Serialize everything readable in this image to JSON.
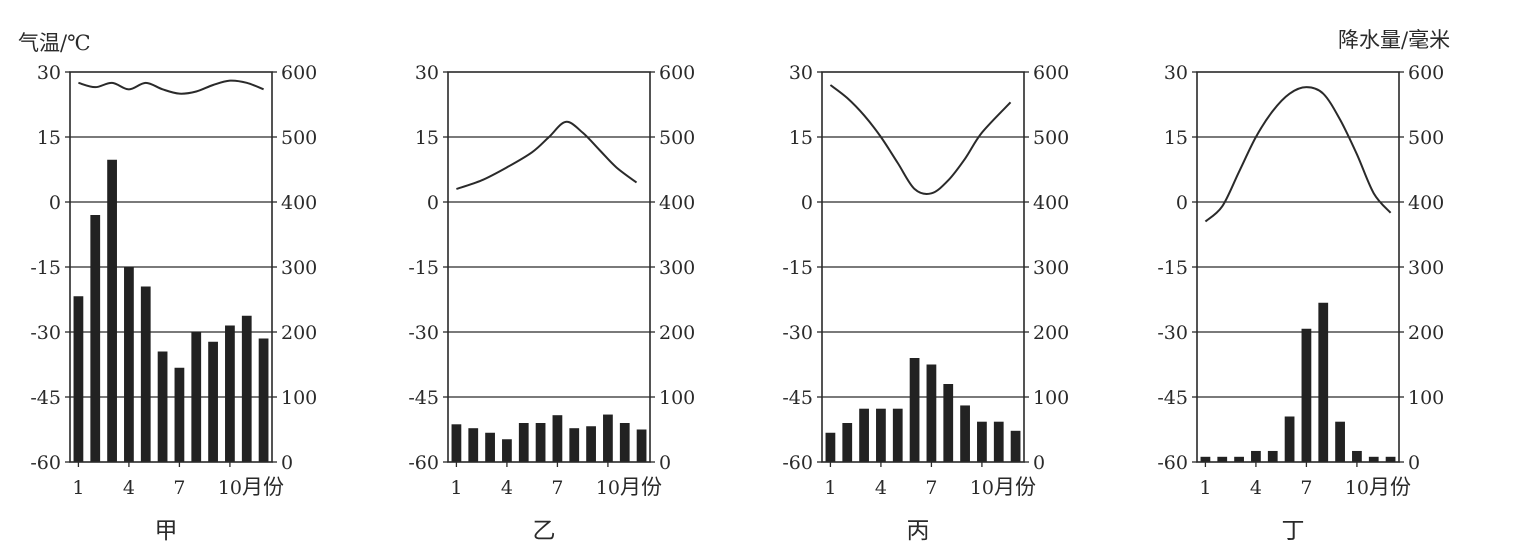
{
  "figure": {
    "left_axis_title": "气温/℃",
    "right_axis_title": "降水量/毫米"
  },
  "chart_data": [
    {
      "type": "bar",
      "label": "甲",
      "x": [
        1,
        2,
        3,
        4,
        5,
        6,
        7,
        8,
        9,
        10,
        11,
        12
      ],
      "x_ticks": [
        1,
        4,
        7,
        10
      ],
      "x_unit": "月份",
      "temp_ylim": [
        -60,
        30
      ],
      "temp_ticks": [
        30,
        15,
        0,
        -15,
        -30,
        -45,
        -60
      ],
      "precip_ylim": [
        0,
        600
      ],
      "precip_ticks": [
        600,
        500,
        400,
        300,
        200,
        100,
        0
      ],
      "grid": true,
      "temperature": [
        27.5,
        26.5,
        27.5,
        26,
        27.5,
        26,
        25,
        25.5,
        27,
        28,
        27.5,
        26
      ],
      "precipitation": [
        255,
        380,
        465,
        300,
        270,
        170,
        145,
        200,
        185,
        210,
        225,
        190
      ]
    },
    {
      "type": "bar",
      "label": "乙",
      "x": [
        1,
        2,
        3,
        4,
        5,
        6,
        7,
        8,
        9,
        10,
        11,
        12
      ],
      "x_ticks": [
        1,
        4,
        7,
        10
      ],
      "x_unit": "月份",
      "temp_ylim": [
        -60,
        30
      ],
      "temp_ticks": [
        30,
        15,
        0,
        -15,
        -30,
        -45,
        -60
      ],
      "precip_ylim": [
        0,
        600
      ],
      "precip_ticks": [
        600,
        500,
        400,
        300,
        200,
        100,
        0
      ],
      "grid": true,
      "temperature": [
        3,
        5,
        8,
        11.5,
        15,
        18.5,
        16,
        12,
        8,
        4.5
      ],
      "temperature_x": [
        1,
        2.5,
        4,
        5.5,
        6.5,
        7.5,
        8.5,
        9.5,
        10.5,
        11.7
      ],
      "precipitation": [
        58,
        52,
        45,
        35,
        60,
        60,
        72,
        52,
        55,
        73,
        60,
        50
      ]
    },
    {
      "type": "bar",
      "label": "丙",
      "x": [
        1,
        2,
        3,
        4,
        5,
        6,
        7,
        8,
        9,
        10,
        11,
        12
      ],
      "x_ticks": [
        1,
        4,
        7,
        10
      ],
      "x_unit": "月份",
      "temp_ylim": [
        -60,
        30
      ],
      "temp_ticks": [
        30,
        15,
        0,
        -15,
        -30,
        -45,
        -60
      ],
      "precip_ylim": [
        0,
        600
      ],
      "precip_ticks": [
        600,
        500,
        400,
        300,
        200,
        100,
        0
      ],
      "grid": true,
      "temperature": [
        27,
        24,
        20,
        15,
        9,
        3,
        2,
        5,
        10,
        16,
        23
      ],
      "temperature_x": [
        1,
        2,
        3,
        4,
        5,
        6,
        7,
        8,
        9,
        10,
        11.7
      ],
      "precipitation": [
        45,
        60,
        82,
        82,
        82,
        160,
        150,
        120,
        87,
        62,
        62,
        48
      ]
    },
    {
      "type": "bar",
      "label": "丁",
      "x": [
        1,
        2,
        3,
        4,
        5,
        6,
        7,
        8,
        9,
        10,
        11,
        12
      ],
      "x_ticks": [
        1,
        4,
        7,
        10
      ],
      "x_unit": "月份",
      "temp_ylim": [
        -60,
        30
      ],
      "temp_ticks": [
        30,
        15,
        0,
        -15,
        -30,
        -45,
        -60
      ],
      "precip_ylim": [
        0,
        600
      ],
      "precip_ticks": [
        600,
        500,
        400,
        300,
        200,
        100,
        0
      ],
      "grid": true,
      "temperature": [
        -4.5,
        -1,
        7,
        15,
        21,
        25,
        26.5,
        25,
        19,
        11,
        2,
        -2.5
      ],
      "precipitation": [
        8,
        8,
        8,
        17,
        17,
        70,
        205,
        245,
        62,
        17,
        8,
        8
      ]
    }
  ]
}
